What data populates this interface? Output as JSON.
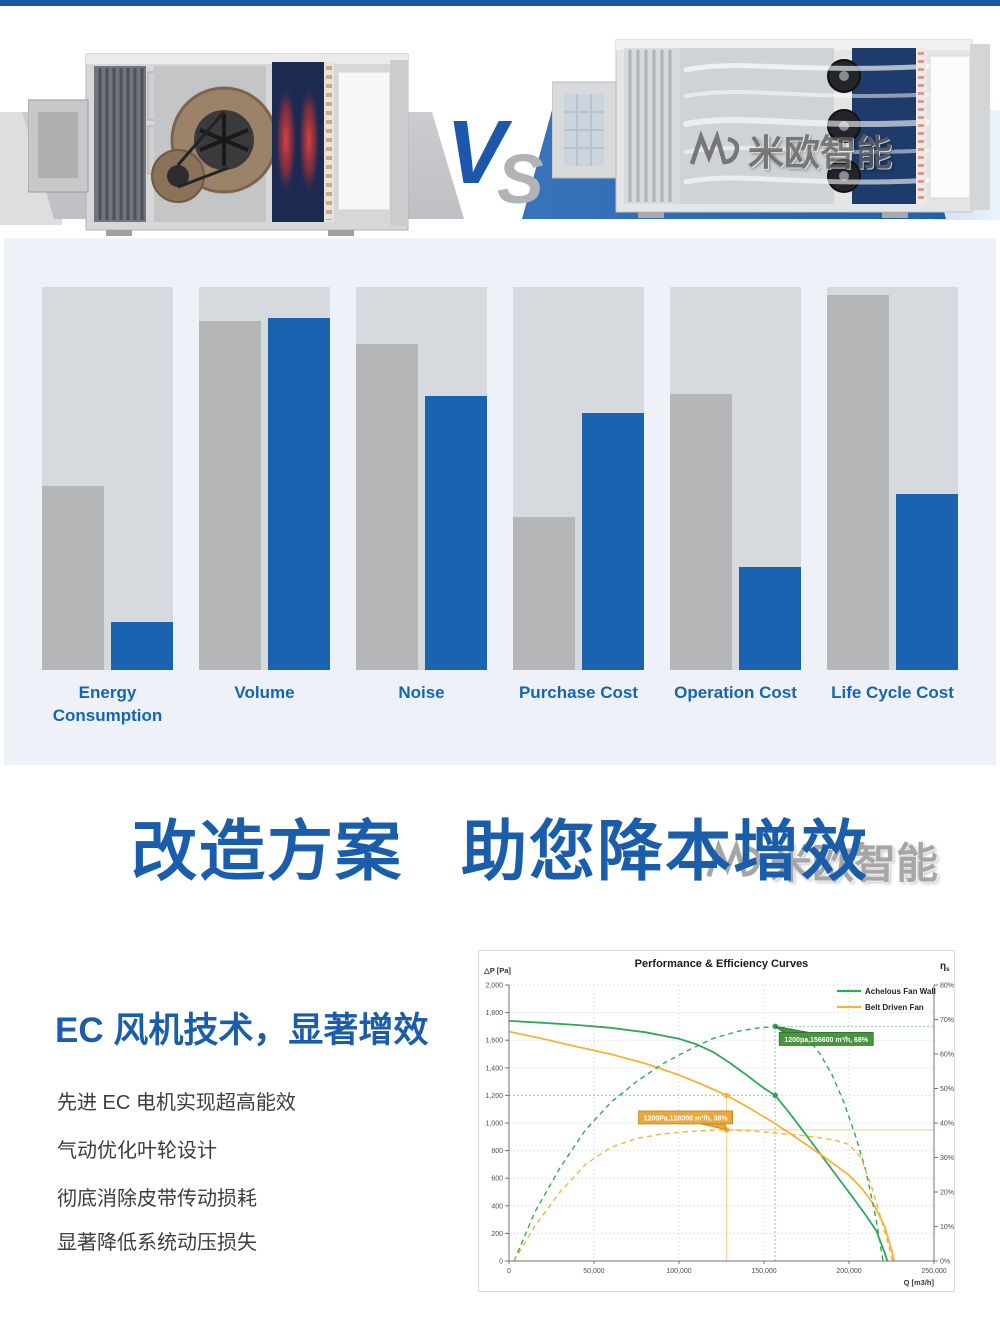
{
  "hero": {
    "vs": {
      "v": "V",
      "s": "S"
    },
    "watermark": "米欧智能"
  },
  "heading": {
    "part1": "改造方案",
    "part2": "助您降本增效"
  },
  "ec_section": {
    "title": "EC 风机技术，显著增效",
    "bullets": [
      "先进 EC 电机实现超高能效",
      "气动优化叶轮设计",
      "彻底消除皮带传动损耗",
      "显著降低系统动压损失"
    ]
  },
  "chart_data": [
    {
      "type": "bar",
      "categories": [
        "Energy Consumption",
        "Volume",
        "Noise",
        "Purchase Cost",
        "Operation Cost",
        "Life Cycle Cost"
      ],
      "series": [
        {
          "name": "Belt Driven Fan",
          "color": "#b4b6b8",
          "values": [
            48,
            91,
            85,
            40,
            72,
            98
          ]
        },
        {
          "name": "Achelous Fan Wall",
          "color": "#1a63b0",
          "values": [
            12.5,
            92,
            71.5,
            67,
            27,
            46
          ]
        }
      ],
      "ylim": [
        0,
        100
      ],
      "track_color": "#d6dade",
      "label_color": "#1565b5",
      "legend": "none",
      "grid": false
    },
    {
      "type": "line",
      "title": "Performance & Efficiency Curves",
      "x_axis": {
        "label": "Q [m3/h]",
        "min": 0,
        "max": 250000,
        "ticks": [
          0,
          50000,
          100000,
          150000,
          200000,
          250000
        ],
        "tick_labels": [
          "0",
          "50,000",
          "100,000",
          "150,000",
          "200,000",
          "250,000"
        ]
      },
      "y_left": {
        "label": "△P [Pa]",
        "min": 0,
        "max": 2000,
        "step": 200,
        "tick_labels": [
          "0",
          "200",
          "400",
          "600",
          "800",
          "1,000",
          "1,200",
          "1,400",
          "1,600",
          "1,800",
          "2,000"
        ]
      },
      "y_right": {
        "label": "η",
        "label_sub": "s",
        "min": 0,
        "max": 80,
        "step": 10,
        "tick_labels": [
          "0%",
          "10%",
          "20%",
          "30%",
          "40%",
          "50%",
          "60%",
          "70%",
          "80%"
        ]
      },
      "legend": [
        {
          "label": "Achelous Fan Wall",
          "color": "#2fa85c"
        },
        {
          "label": "Belt Driven Fan",
          "color": "#f2b53a"
        }
      ],
      "grid": true,
      "series": [
        {
          "name": "achelous-dp",
          "axis": "left",
          "style": "solid",
          "color": "#2fa85c",
          "points": [
            [
              0,
              1740
            ],
            [
              20000,
              1726
            ],
            [
              40000,
              1710
            ],
            [
              60000,
              1690
            ],
            [
              80000,
              1658
            ],
            [
              100000,
              1610
            ],
            [
              110000,
              1572
            ],
            [
              120000,
              1515
            ],
            [
              130000,
              1435
            ],
            [
              140000,
              1345
            ],
            [
              150000,
              1252
            ],
            [
              156600,
              1200
            ],
            [
              165000,
              1072
            ],
            [
              175000,
              910
            ],
            [
              185000,
              745
            ],
            [
              195000,
              580
            ],
            [
              203000,
              448
            ],
            [
              210000,
              330
            ],
            [
              216000,
              220
            ],
            [
              221000,
              60
            ],
            [
              222500,
              0
            ]
          ]
        },
        {
          "name": "belt-dp",
          "axis": "left",
          "style": "solid",
          "color": "#f2b53a",
          "points": [
            [
              0,
              1662
            ],
            [
              20000,
              1610
            ],
            [
              40000,
              1552
            ],
            [
              60000,
              1498
            ],
            [
              80000,
              1432
            ],
            [
              100000,
              1348
            ],
            [
              115000,
              1272
            ],
            [
              128000,
              1200
            ],
            [
              140000,
              1118
            ],
            [
              155000,
              1008
            ],
            [
              170000,
              885
            ],
            [
              185000,
              758
            ],
            [
              200000,
              622
            ],
            [
              208000,
              520
            ],
            [
              215000,
              400
            ],
            [
              221000,
              250
            ],
            [
              225500,
              60
            ],
            [
              226500,
              0
            ]
          ]
        },
        {
          "name": "achelous-eta",
          "axis": "right",
          "style": "dashed",
          "color": "#2fa85c",
          "points": [
            [
              3000,
              0
            ],
            [
              15000,
              14
            ],
            [
              30000,
              27
            ],
            [
              45000,
              38
            ],
            [
              60000,
              46
            ],
            [
              75000,
              52
            ],
            [
              90000,
              57
            ],
            [
              105000,
              61
            ],
            [
              120000,
              64.5
            ],
            [
              135000,
              66.6
            ],
            [
              146000,
              67.5
            ],
            [
              156600,
              68
            ],
            [
              166000,
              67.2
            ],
            [
              175000,
              65
            ],
            [
              183000,
              60
            ],
            [
              190000,
              54
            ],
            [
              197000,
              46
            ],
            [
              204000,
              36
            ],
            [
              210000,
              26
            ],
            [
              216000,
              12
            ],
            [
              220000,
              0
            ]
          ]
        },
        {
          "name": "belt-eta",
          "axis": "right",
          "style": "dashed",
          "color": "#f2b53a",
          "points": [
            [
              3000,
              0
            ],
            [
              15000,
              10
            ],
            [
              30000,
              20
            ],
            [
              45000,
              28
            ],
            [
              60000,
              33
            ],
            [
              75000,
              35.5
            ],
            [
              90000,
              36.8
            ],
            [
              105000,
              37.5
            ],
            [
              120000,
              37.9
            ],
            [
              128000,
              38
            ],
            [
              140000,
              37.8
            ],
            [
              155000,
              37.2
            ],
            [
              170000,
              36.5
            ],
            [
              182000,
              35.8
            ],
            [
              192000,
              35
            ],
            [
              200000,
              33.8
            ],
            [
              207000,
              30
            ],
            [
              213000,
              22
            ],
            [
              219000,
              12
            ],
            [
              224000,
              3
            ],
            [
              225500,
              0
            ]
          ]
        }
      ],
      "operating_points": [
        {
          "series": "Achelous Fan Wall",
          "q": 156600,
          "dp": 1200,
          "eta": 68,
          "label": "1200pa,156600 m³/h, 68%",
          "color": "#2fa85c",
          "ref_color": "#9fd8b0",
          "box_fill": "#4a9440",
          "box_border": "#2c6e2f"
        },
        {
          "series": "Belt Driven Fan",
          "q": 128000,
          "dp": 1200,
          "eta": 38,
          "label": "1200Pa,128000 m³/h, 38%",
          "color": "#f2b53a",
          "ref_color": "#f7d893",
          "box_fill": "#e9a83b",
          "box_border": "#c08119"
        }
      ]
    }
  ]
}
